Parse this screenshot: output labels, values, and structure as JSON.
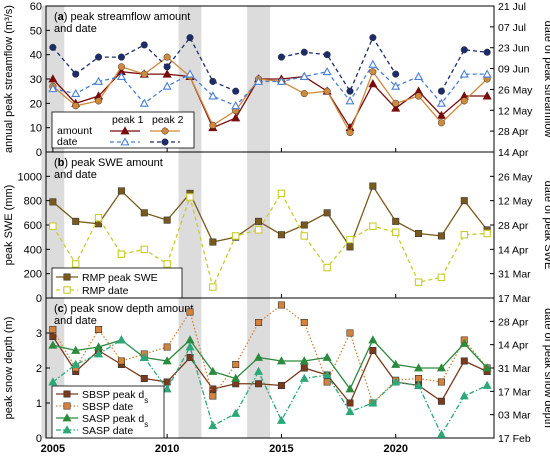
{
  "chart_data": [
    {
      "panel": "a",
      "type": "line",
      "title_letter": "a",
      "title_rest": " peak streamflow amount",
      "title_line2": "and date",
      "ylabel_left": "annual peak streamflow (m³/s)",
      "ylabel_right": "date of peak streamflow",
      "ylim": [
        0,
        60
      ],
      "yticks": [
        0,
        10,
        20,
        30,
        40,
        50,
        60
      ],
      "right_ticks": [
        "14 Apr",
        "28 Apr",
        "12 May",
        "26 May",
        "09 Jun",
        "23 Jun",
        "07 Jul",
        "21 Jul"
      ],
      "legend": {
        "row_label_amount": "amount",
        "row_label_date": "date",
        "peak1": "peak 1",
        "peak2": "peak 2"
      },
      "x": [
        2005,
        2006,
        2007,
        2008,
        2009,
        2010,
        2011,
        2012,
        2013,
        2014,
        2015,
        2016,
        2017,
        2018,
        2019,
        2020,
        2021,
        2022,
        2023,
        2024
      ],
      "series": [
        {
          "name": "peak 1 amount",
          "color": "#7a0b0b",
          "marker": "triangle",
          "dash": "solid",
          "values": [
            30,
            20,
            23,
            33,
            32,
            32,
            31,
            10,
            14,
            30,
            30,
            31,
            25,
            10,
            28,
            18,
            25,
            15,
            23,
            23
          ]
        },
        {
          "name": "peak 2 amount",
          "color": "#d08a3c",
          "marker": "circle",
          "dash": "solid",
          "values": [
            27,
            19,
            21,
            35,
            32,
            39,
            31,
            11,
            17,
            30,
            29,
            24,
            25,
            8,
            33,
            20,
            23,
            12,
            21,
            30
          ]
        },
        {
          "name": "peak 1 date",
          "color": "#4a7fd4",
          "marker": "triangle-open",
          "dash": "dashed",
          "values": [
            26,
            24,
            29,
            31,
            20,
            27,
            32,
            23,
            19,
            29,
            29,
            31,
            33,
            21,
            36,
            27,
            31,
            20,
            32,
            32
          ]
        },
        {
          "name": "peak 2 date",
          "color": "#1c2c6b",
          "marker": "circle",
          "dash": "dashed",
          "values": [
            43,
            32,
            39,
            39,
            44,
            35,
            47,
            29,
            25,
            null,
            39,
            41,
            40,
            25,
            47,
            32,
            null,
            25,
            42,
            41
          ]
        }
      ]
    },
    {
      "panel": "b",
      "type": "line",
      "title_letter": "b",
      "title_rest": " peak SWE amount",
      "title_line2": "and date",
      "ylabel_left": "peak SWE (mm)",
      "ylabel_right": "date of peak SWE",
      "ylim": [
        0,
        1200
      ],
      "yticks": [
        0,
        200,
        400,
        600,
        800,
        1000,
        1200
      ],
      "right_ticks": [
        "17 Mar",
        "31 Mar",
        "14 Apr",
        "28 Apr",
        "12 May",
        "26 May",
        "09 Jun"
      ],
      "legend": {
        "swe": "RMP peak SWE",
        "date": "RMP date"
      },
      "x": [
        2005,
        2006,
        2007,
        2008,
        2009,
        2010,
        2011,
        2012,
        2013,
        2014,
        2015,
        2016,
        2017,
        2018,
        2019,
        2020,
        2021,
        2022,
        2023,
        2024
      ],
      "series": [
        {
          "name": "RMP peak SWE",
          "color": "#7a5a1c",
          "marker": "square",
          "dash": "solid",
          "values": [
            790,
            630,
            610,
            880,
            700,
            640,
            860,
            460,
            500,
            630,
            520,
            600,
            700,
            420,
            920,
            630,
            530,
            510,
            800,
            560
          ]
        },
        {
          "name": "RMP date",
          "color": "#c9cc2c",
          "marker": "square-open",
          "dash": "dashed",
          "values": [
            590,
            280,
            660,
            360,
            400,
            280,
            830,
            90,
            510,
            560,
            860,
            510,
            250,
            480,
            590,
            540,
            130,
            170,
            520,
            530
          ]
        }
      ]
    },
    {
      "panel": "c",
      "type": "line",
      "title_letter": "c",
      "title_rest": " peak snow depth amount",
      "title_line2": "and date",
      "ylabel_left": "peak snow depth (m)",
      "ylabel_right": "date of peak snow depth",
      "ylim": [
        0,
        4
      ],
      "yticks": [
        0,
        1,
        2,
        3,
        4
      ],
      "right_ticks": [
        "17 Feb",
        "03 Mar",
        "17 Mar",
        "31 Mar",
        "14 Apr",
        "28 Apr",
        "12 May"
      ],
      "legend": {
        "sbsp_pk": "SBSP peak d",
        "sbsp_dt": "SBSP date",
        "sasp_pk": "SASP peak d",
        "sasp_dt": "SASP date",
        "sub": "s"
      },
      "x": [
        2005,
        2006,
        2007,
        2008,
        2009,
        2010,
        2011,
        2012,
        2013,
        2014,
        2015,
        2016,
        2017,
        2018,
        2019,
        2020,
        2021,
        2022,
        2023,
        2024
      ],
      "series": [
        {
          "name": "SBSP peak ds",
          "color": "#7a3a1c",
          "marker": "square",
          "dash": "solid",
          "values": [
            2.9,
            1.9,
            2.5,
            2.1,
            1.7,
            1.6,
            2.3,
            1.4,
            1.55,
            1.55,
            1.5,
            2.0,
            1.8,
            1.0,
            2.5,
            1.6,
            1.5,
            1.05,
            2.2,
            1.9
          ]
        },
        {
          "name": "SBSP date",
          "color": "#d4823c",
          "marker": "square",
          "dash": "dotted",
          "values": [
            3.1,
            2.0,
            3.1,
            2.2,
            2.4,
            2.6,
            3.6,
            1.2,
            2.1,
            3.3,
            3.8,
            3.3,
            1.6,
            3.0,
            1.0,
            1.65,
            1.7,
            1.6,
            2.8,
            2.0
          ]
        },
        {
          "name": "SASP peak ds",
          "color": "#2c8a3c",
          "marker": "triangle",
          "dash": "solid",
          "values": [
            2.65,
            2.5,
            2.6,
            2.8,
            2.3,
            2.2,
            2.8,
            1.9,
            1.7,
            2.3,
            2.2,
            2.2,
            2.3,
            1.4,
            2.8,
            2.1,
            2.0,
            2.0,
            2.7,
            2.0
          ]
        },
        {
          "name": "SASP date",
          "color": "#2ca878",
          "marker": "triangle",
          "dash": "dashdot",
          "values": [
            1.6,
            2.1,
            2.4,
            2.8,
            2.3,
            1.4,
            2.6,
            0.35,
            0.7,
            1.9,
            0.5,
            1.7,
            1.8,
            0.75,
            1.0,
            1.6,
            1.5,
            0.1,
            1.2,
            1.5
          ]
        }
      ]
    }
  ],
  "x_axis": {
    "ticks": [
      2005,
      2010,
      2015,
      2020
    ],
    "xlim": [
      2004.7,
      2024.3
    ]
  },
  "shaded_years": [
    2005,
    2011,
    2014
  ]
}
